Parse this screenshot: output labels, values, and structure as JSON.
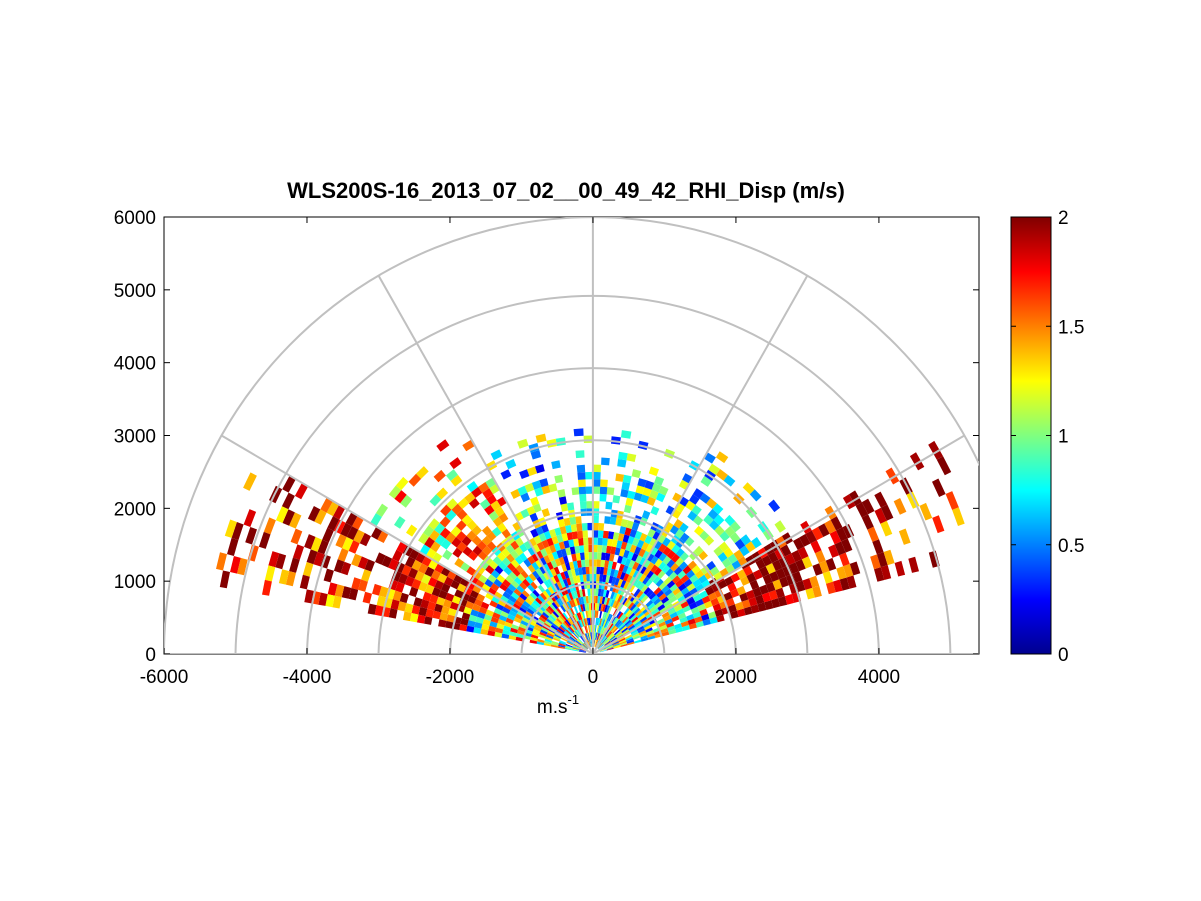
{
  "chart_data": {
    "type": "heatmap",
    "subtype": "polar-rhi",
    "title": "WLS200S-16_2013_07_02__00_49_42_RHI_Disp (m/s)",
    "xlabel": "m.s",
    "xlabel_superscript": "-1",
    "ylabel": "",
    "xlim": [
      -6000,
      5400
    ],
    "ylim": [
      0,
      6000
    ],
    "x_ticks": [
      "-6000",
      "-4000",
      "-2000",
      "0",
      "2000",
      "4000"
    ],
    "y_ticks": [
      "0",
      "1000",
      "2000",
      "3000",
      "4000",
      "5000",
      "6000"
    ],
    "range_rings": [
      1000,
      2000,
      3000,
      4000,
      5000,
      6000
    ],
    "spokes_deg": [
      0,
      30,
      60,
      90,
      120,
      150,
      180
    ],
    "colorbar": {
      "colormap": "jet",
      "min": 0,
      "max": 2,
      "ticks": [
        "0",
        "0.5",
        "1",
        "1.5",
        "2"
      ]
    },
    "scan_sectors": [
      {
        "theta_deg": [
          14,
          30
        ],
        "range_m": [
          0,
          5600
        ],
        "dominant_value": 1.9
      },
      {
        "theta_deg": [
          30,
          60
        ],
        "range_m": [
          0,
          3300
        ],
        "dominant_value": 0.9
      },
      {
        "theta_deg": [
          60,
          120
        ],
        "range_m": [
          0,
          3100
        ],
        "dominant_value": 0.8
      },
      {
        "theta_deg": [
          120,
          150
        ],
        "range_m": [
          0,
          3600
        ],
        "dominant_value": 1.3
      },
      {
        "theta_deg": [
          150,
          170
        ],
        "range_m": [
          0,
          5500
        ],
        "dominant_value": 1.8
      }
    ],
    "grid": true
  }
}
